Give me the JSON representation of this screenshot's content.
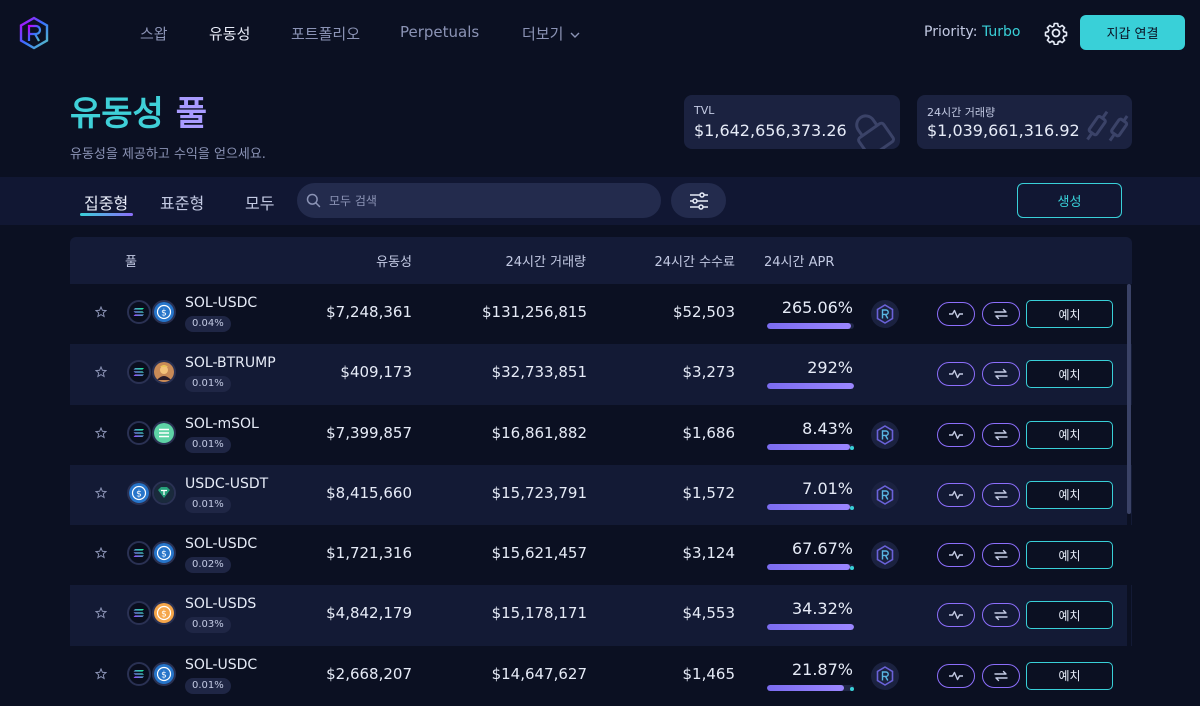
{
  "nav": {
    "items": [
      {
        "label": "스왑",
        "active": false
      },
      {
        "label": "유동성",
        "active": true
      },
      {
        "label": "포트폴리오",
        "active": false
      },
      {
        "label": "Perpetuals",
        "active": false
      },
      {
        "label": "더보기",
        "active": false
      }
    ],
    "priority_label": "Priority:",
    "priority_value": "Turbo",
    "connect_wallet": "지갑 연결"
  },
  "hero": {
    "title_part1": "유동성",
    "title_part2": "풀",
    "subtitle": "유동성을 제공하고 수익을 얻으세요.",
    "tvl_label": "TVL",
    "tvl_value": "$1,642,656,373.26",
    "volume_label": "24시간 거래량",
    "volume_value": "$1,039,661,316.92"
  },
  "toolbar": {
    "tabs": [
      {
        "label": "집중형",
        "active": true
      },
      {
        "label": "표준형",
        "active": false
      },
      {
        "label": "모두",
        "active": false
      }
    ],
    "search_placeholder": "모두 검색",
    "create_label": "생성"
  },
  "table": {
    "headers": {
      "pool": "풀",
      "liquidity": "유동성",
      "volume": "24시간 거래량",
      "fees": "24시간 수수료",
      "apr": "24시간 APR"
    },
    "deposit_label": "예치",
    "rows": [
      {
        "pair": "SOL-USDC",
        "fee": "0.04%",
        "liquidity": "$7,248,361",
        "volume": "$131,256,815",
        "fees": "$52,503",
        "apr": "265.06%",
        "apr_bar": 0.97,
        "apr_dot": false,
        "farm": true,
        "coin2": "usdc"
      },
      {
        "pair": "SOL-BTRUMP",
        "fee": "0.01%",
        "liquidity": "$409,173",
        "volume": "$32,733,851",
        "fees": "$3,273",
        "apr": "292%",
        "apr_bar": 1.0,
        "apr_dot": false,
        "farm": false,
        "coin2": "btrump"
      },
      {
        "pair": "SOL-mSOL",
        "fee": "0.01%",
        "liquidity": "$7,399,857",
        "volume": "$16,861,882",
        "fees": "$1,686",
        "apr": "8.43%",
        "apr_bar": 0.95,
        "apr_dot": true,
        "farm": true,
        "coin2": "msol"
      },
      {
        "pair": "USDC-USDT",
        "fee": "0.01%",
        "liquidity": "$8,415,660",
        "volume": "$15,723,791",
        "fees": "$1,572",
        "apr": "7.01%",
        "apr_bar": 0.95,
        "apr_dot": true,
        "farm": true,
        "coin2": "usdt"
      },
      {
        "pair": "SOL-USDC",
        "fee": "0.02%",
        "liquidity": "$1,721,316",
        "volume": "$15,621,457",
        "fees": "$3,124",
        "apr": "67.67%",
        "apr_bar": 0.95,
        "apr_dot": true,
        "farm": true,
        "coin2": "usdc"
      },
      {
        "pair": "SOL-USDS",
        "fee": "0.03%",
        "liquidity": "$4,842,179",
        "volume": "$15,178,171",
        "fees": "$4,553",
        "apr": "34.32%",
        "apr_bar": 1.0,
        "apr_dot": false,
        "farm": false,
        "coin2": "usds"
      },
      {
        "pair": "SOL-USDC",
        "fee": "0.01%",
        "liquidity": "$2,668,207",
        "volume": "$14,647,627",
        "fees": "$1,465",
        "apr": "21.87%",
        "apr_bar": 0.88,
        "apr_dot": true,
        "farm": true,
        "coin2": "usdc"
      }
    ]
  },
  "colors": {
    "accent_cyan": "#39d0d8",
    "accent_purple": "#8c6efb",
    "background": "#0b1022"
  }
}
